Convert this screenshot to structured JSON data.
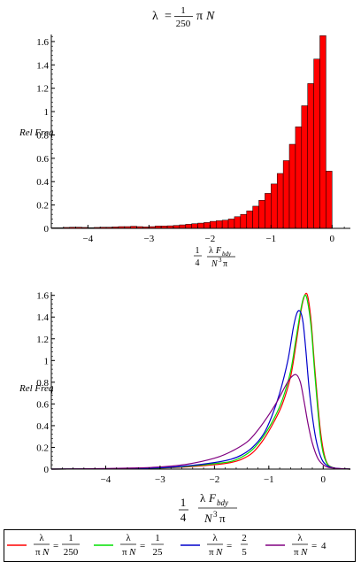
{
  "top_title": {
    "lambda": "λ",
    "equals": "=",
    "num": "1",
    "den": "250",
    "rest_pi": "π",
    "rest_n": "N"
  },
  "ylabel": "Rel Freq",
  "xlabel": {
    "frac_num": "1",
    "frac_den": "4",
    "lam": "λ",
    "F": "F",
    "sub": "bdy",
    "N": "N",
    "exp": "3",
    "pi": "π"
  },
  "legend": [
    {
      "color": "#ff0000",
      "num": "λ",
      "den_pi": "π",
      "den_n": "N",
      "eq": "=",
      "rhs_num": "1",
      "rhs_den": "250"
    },
    {
      "color": "#00e000",
      "num": "λ",
      "den_pi": "π",
      "den_n": "N",
      "eq": "=",
      "rhs_num": "1",
      "rhs_den": "25"
    },
    {
      "color": "#0000cc",
      "num": "λ",
      "den_pi": "π",
      "den_n": "N",
      "eq": "=",
      "rhs_num": "2",
      "rhs_den": "5"
    },
    {
      "color": "#800080",
      "num": "λ",
      "den_pi": "π",
      "den_n": "N",
      "eq": "=",
      "rhs_num": "4",
      "rhs_den": ""
    }
  ],
  "chart_data": [
    {
      "type": "bar",
      "title": "λ = 1/250 π N",
      "ylabel": "Rel Freq",
      "xlim": [
        -4.6,
        0.3
      ],
      "ylim": [
        0,
        1.66
      ],
      "xticks": [
        "-4",
        "-3",
        "-2",
        "-1",
        "0"
      ],
      "yticks": [
        "0",
        "0.2",
        "0.4",
        "0.6",
        "0.8",
        "1",
        "1.2",
        "1.4",
        "1.6"
      ],
      "color": "#ff0000",
      "bin_width": 0.1,
      "bin_starts": [
        -4.6,
        -4.5,
        -4.4,
        -4.3,
        -4.2,
        -4.1,
        -4.0,
        -3.9,
        -3.8,
        -3.7,
        -3.6,
        -3.5,
        -3.4,
        -3.3,
        -3.2,
        -3.1,
        -3.0,
        -2.9,
        -2.8,
        -2.7,
        -2.6,
        -2.5,
        -2.4,
        -2.3,
        -2.2,
        -2.1,
        -2.0,
        -1.9,
        -1.8,
        -1.7,
        -1.6,
        -1.5,
        -1.4,
        -1.3,
        -1.2,
        -1.1,
        -1.0,
        -0.9,
        -0.8,
        -0.7,
        -0.6,
        -0.5,
        -0.4,
        -0.3,
        -0.2,
        -0.1
      ],
      "values": [
        0.005,
        0.005,
        0.008,
        0.01,
        0.01,
        0.008,
        0.006,
        0.008,
        0.01,
        0.01,
        0.012,
        0.015,
        0.015,
        0.018,
        0.015,
        0.012,
        0.015,
        0.02,
        0.02,
        0.022,
        0.025,
        0.03,
        0.035,
        0.04,
        0.045,
        0.05,
        0.06,
        0.065,
        0.07,
        0.08,
        0.1,
        0.12,
        0.15,
        0.19,
        0.24,
        0.3,
        0.38,
        0.47,
        0.58,
        0.72,
        0.87,
        1.05,
        1.24,
        1.45,
        1.65,
        0.49
      ]
    },
    {
      "type": "line",
      "ylabel": "Rel Freq",
      "xlim": [
        -5.0,
        0.5
      ],
      "ylim": [
        0,
        1.63
      ],
      "xticks": [
        "-4",
        "-3",
        "-2",
        "-1",
        "0"
      ],
      "yticks": [
        "0",
        "0.2",
        "0.4",
        "0.6",
        "0.8",
        "1",
        "1.2",
        "1.4",
        "1.6"
      ],
      "series": [
        {
          "name": "λ/(πN) = 1/250",
          "color": "#ff0000",
          "x": [
            -5.0,
            -4.0,
            -3.0,
            -2.5,
            -2.0,
            -1.7,
            -1.5,
            -1.3,
            -1.1,
            -0.9,
            -0.75,
            -0.6,
            -0.5,
            -0.4,
            -0.33,
            -0.28,
            -0.22,
            -0.15,
            -0.05,
            0.05,
            0.2,
            0.5
          ],
          "y": [
            0.0,
            0.003,
            0.01,
            0.02,
            0.04,
            0.06,
            0.09,
            0.15,
            0.27,
            0.44,
            0.6,
            0.85,
            1.15,
            1.48,
            1.61,
            1.58,
            1.35,
            0.9,
            0.35,
            0.08,
            0.01,
            0.0
          ]
        },
        {
          "name": "λ/(πN) = 1/25",
          "color": "#00e000",
          "x": [
            -5.0,
            -4.0,
            -3.0,
            -2.5,
            -2.0,
            -1.7,
            -1.5,
            -1.3,
            -1.1,
            -0.9,
            -0.75,
            -0.6,
            -0.5,
            -0.4,
            -0.34,
            -0.29,
            -0.22,
            -0.15,
            -0.05,
            0.05,
            0.2,
            0.5
          ],
          "y": [
            0.0,
            0.003,
            0.01,
            0.025,
            0.05,
            0.07,
            0.11,
            0.18,
            0.3,
            0.47,
            0.64,
            0.9,
            1.2,
            1.5,
            1.6,
            1.55,
            1.3,
            0.85,
            0.3,
            0.07,
            0.01,
            0.0
          ]
        },
        {
          "name": "λ/(πN) = 2/5",
          "color": "#0000cc",
          "x": [
            -5.0,
            -4.0,
            -3.0,
            -2.5,
            -2.0,
            -1.7,
            -1.5,
            -1.3,
            -1.1,
            -0.95,
            -0.8,
            -0.65,
            -0.55,
            -0.48,
            -0.42,
            -0.37,
            -0.32,
            -0.25,
            -0.15,
            -0.05,
            0.05,
            0.2,
            0.5
          ],
          "y": [
            0.0,
            0.003,
            0.012,
            0.03,
            0.06,
            0.09,
            0.13,
            0.2,
            0.32,
            0.48,
            0.7,
            1.0,
            1.3,
            1.44,
            1.45,
            1.35,
            1.1,
            0.7,
            0.32,
            0.12,
            0.04,
            0.01,
            0.0
          ]
        },
        {
          "name": "λ/(πN) = 4",
          "color": "#800080",
          "x": [
            -5.0,
            -4.0,
            -3.5,
            -3.0,
            -2.5,
            -2.0,
            -1.7,
            -1.4,
            -1.2,
            -1.0,
            -0.85,
            -0.7,
            -0.6,
            -0.5,
            -0.42,
            -0.35,
            -0.28,
            -0.2,
            -0.1,
            0.0,
            0.1,
            0.3,
            0.5
          ],
          "y": [
            0.0,
            0.005,
            0.01,
            0.02,
            0.045,
            0.1,
            0.16,
            0.25,
            0.36,
            0.5,
            0.62,
            0.76,
            0.84,
            0.87,
            0.8,
            0.62,
            0.42,
            0.24,
            0.1,
            0.04,
            0.015,
            0.005,
            0.0
          ]
        }
      ]
    }
  ]
}
